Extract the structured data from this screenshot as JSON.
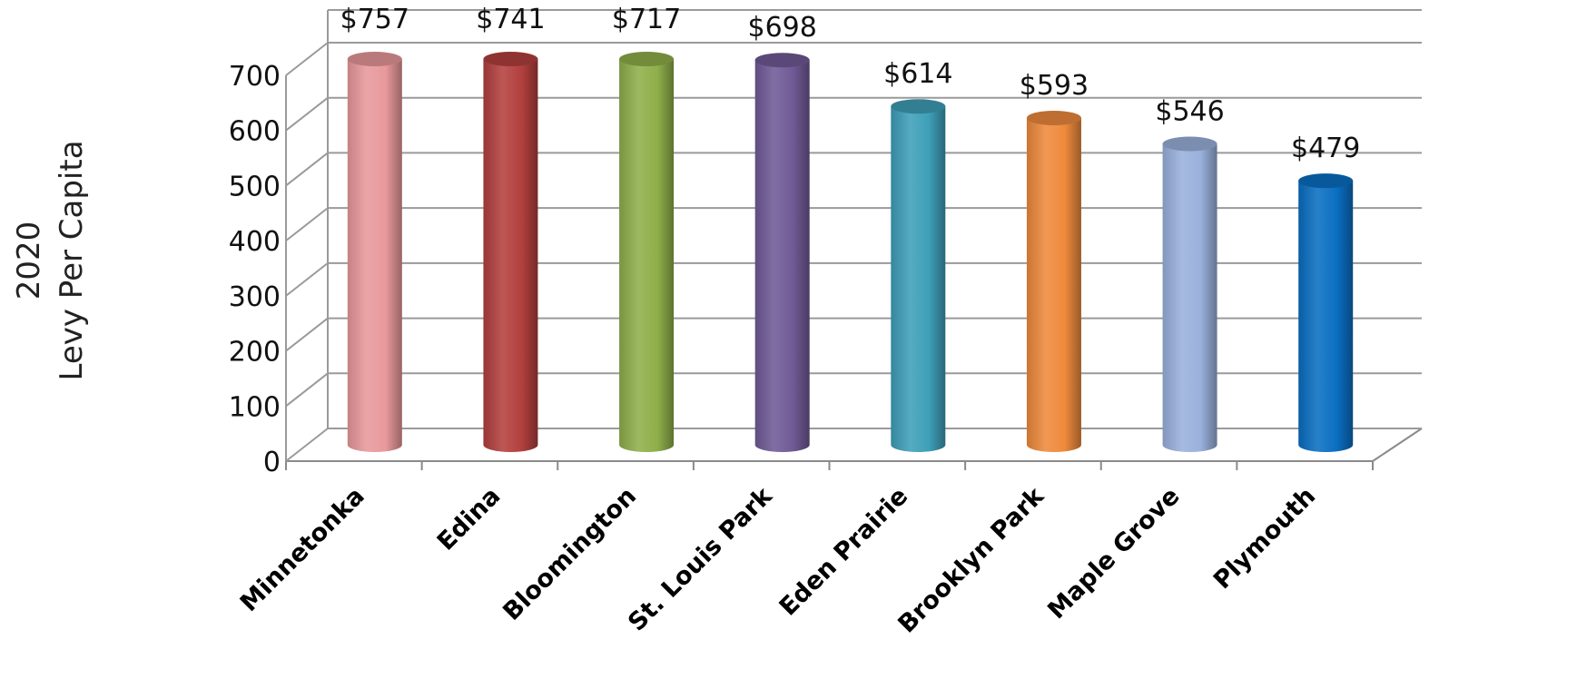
{
  "chart_data": {
    "type": "bar",
    "style": "3d-cylinder",
    "ylabel_lines": [
      "2020",
      "Levy Per Capita"
    ],
    "categories": [
      "Minnetonka",
      "Edina",
      "Bloomington",
      "St. Louis Park",
      "Eden Prairie",
      "Brooklyn Park",
      "Maple Grove",
      "Plymouth"
    ],
    "values": [
      757,
      741,
      717,
      698,
      614,
      593,
      546,
      479
    ],
    "data_labels": [
      "$757",
      "$741",
      "$717",
      "$698",
      "$614",
      "$593",
      "$546",
      "$479"
    ],
    "y_ticks": [
      0,
      100,
      200,
      300,
      400,
      500,
      600,
      700
    ],
    "ylim": [
      0,
      700
    ],
    "grid": true,
    "legend": "none",
    "colors": [
      "#E8999B",
      "#B3403E",
      "#8FAF4A",
      "#705A96",
      "#3E9FB8",
      "#EE8A3C",
      "#9AB1DC",
      "#0A6FC2"
    ]
  }
}
